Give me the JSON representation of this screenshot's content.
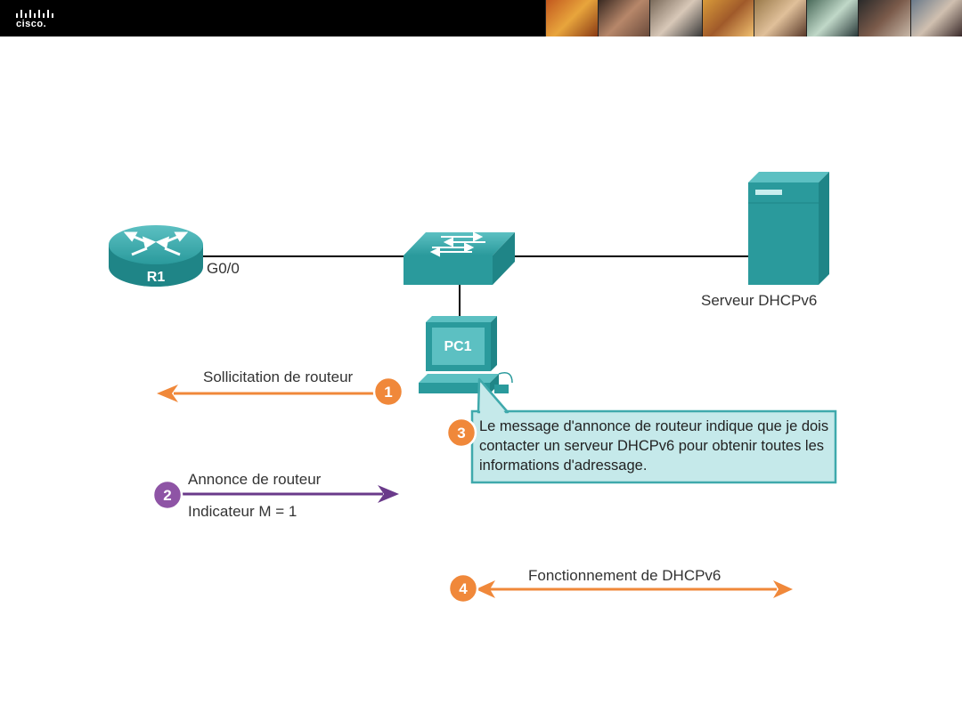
{
  "header": {
    "logo_text": "cisco."
  },
  "diagram": {
    "router_label": "R1",
    "interface_label": "G0/0",
    "pc_label": "PC1",
    "server_label": "Serveur DHCPv6",
    "steps": [
      {
        "number": "1",
        "label": "Sollicitation de routeur",
        "color": "#f0883a"
      },
      {
        "number": "2",
        "label": "Annonce de routeur",
        "sublabel": "Indicateur M = 1",
        "color": "#8e54a5"
      },
      {
        "number": "3",
        "label": "Le message d'annonce de routeur indique que je dois contacter un serveur DHCPv6 pour obtenir toutes les informations d'adressage.",
        "color": "#f0883a"
      },
      {
        "number": "4",
        "label": "Fonctionnement de DHCPv6",
        "color": "#f0883a"
      }
    ],
    "colors": {
      "device_teal": "#2a9a9c",
      "arrow_orange": "#f0883a",
      "arrow_purple": "#6a3a8a",
      "bubble_bg": "#c5e9ea",
      "bubble_border": "#3fa9ac"
    }
  }
}
